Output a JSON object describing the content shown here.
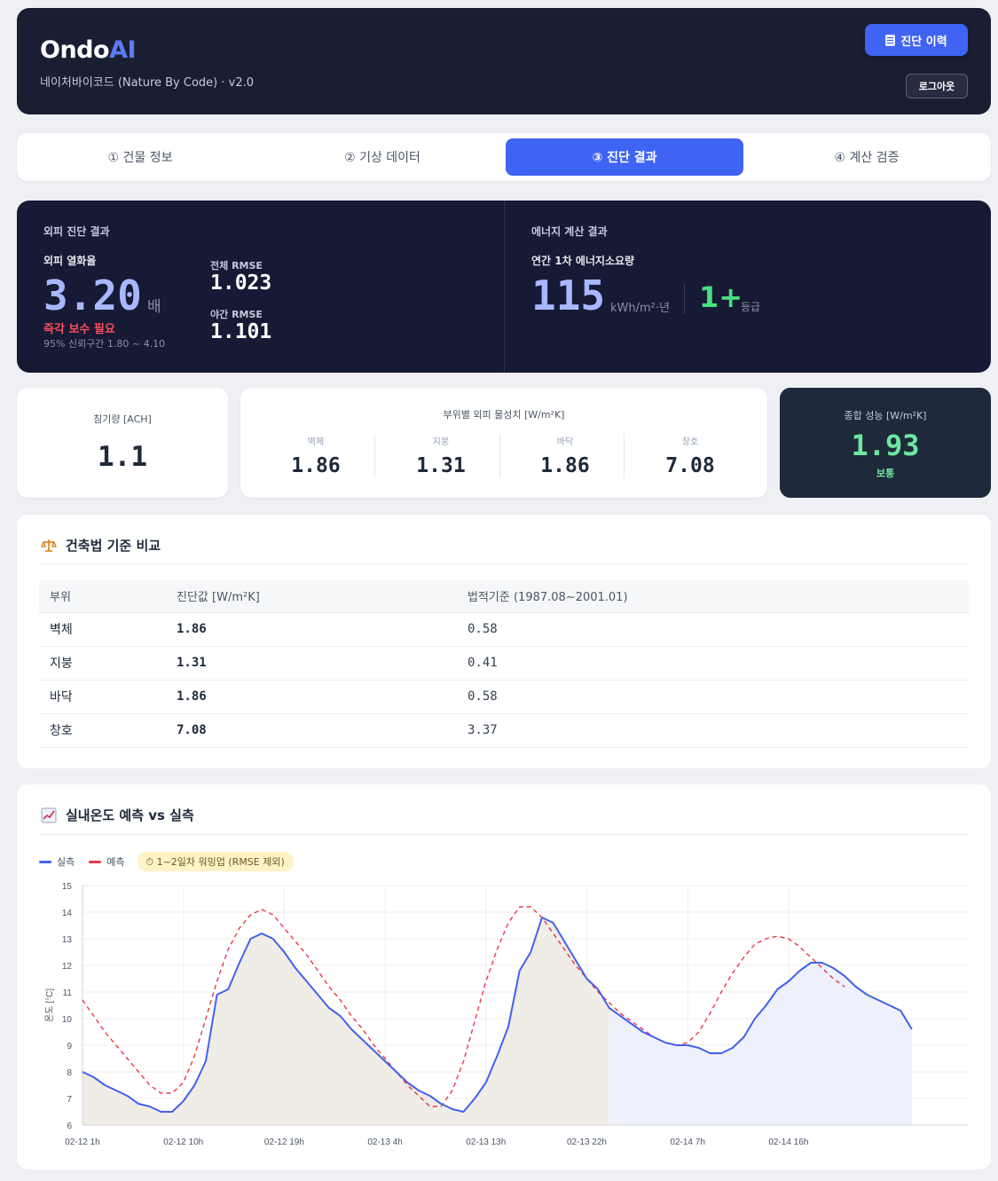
{
  "header": {
    "brand_main": "Ondo",
    "brand_accent": "AI",
    "subtitle": "네이처바이코드 (Nature By Code) · v2.0",
    "history_button": "진단 이력",
    "logout_button": "로그아웃"
  },
  "tabs": [
    {
      "label": "① 건물 정보"
    },
    {
      "label": "② 기상 데이터"
    },
    {
      "label": "③ 진단 결과"
    },
    {
      "label": "④ 계산 검증"
    }
  ],
  "envelope": {
    "section_label": "외피 진단 결과",
    "metric_label": "외피 열화율",
    "value": "3.20",
    "unit": "배",
    "warning": "즉각 보수 필요",
    "ci": "95% 신뢰구간 1.80 ~ 4.10",
    "rmse_total_label": "전체 RMSE",
    "rmse_total": "1.023",
    "rmse_night_label": "야간 RMSE",
    "rmse_night": "1.101"
  },
  "energy": {
    "section_label": "에너지 계산 결과",
    "metric_label": "연간 1차 에너지소요량",
    "value": "115",
    "unit": "kWh/m²·년",
    "grade": "1+",
    "grade_unit": "등급"
  },
  "infiltration": {
    "label": "침기량 [ACH]",
    "value": "1.1"
  },
  "u_values": {
    "title": "부위별 외피 물성치 [W/m²K]",
    "items": [
      {
        "name": "벽체",
        "value": "1.86"
      },
      {
        "name": "지붕",
        "value": "1.31"
      },
      {
        "name": "바닥",
        "value": "1.86"
      },
      {
        "name": "창호",
        "value": "7.08"
      }
    ]
  },
  "overall": {
    "label": "종합 성능 [W/m²K]",
    "value": "1.93",
    "status": "보통"
  },
  "comparison": {
    "title": "건축법 기준 비교",
    "headers": [
      "부위",
      "진단값 [W/m²K]",
      "법적기준 (1987.08~2001.01)"
    ],
    "rows": [
      {
        "part": "벽체",
        "diag": "1.86",
        "legal": "0.58"
      },
      {
        "part": "지붕",
        "diag": "1.31",
        "legal": "0.41"
      },
      {
        "part": "바닥",
        "diag": "1.86",
        "legal": "0.58"
      },
      {
        "part": "창호",
        "diag": "7.08",
        "legal": "3.37"
      }
    ]
  },
  "chart_card": {
    "title": "실내온도 예측 vs 실측",
    "legend_actual": "실측",
    "legend_pred": "예측",
    "warmup_badge": "⏱ 1~2일차 워밍업 (RMSE 제외)"
  },
  "colors": {
    "actual": "#4361ee",
    "pred": "#e63946",
    "warmup_fill": "#f0ece6",
    "eval_fill": "#eef1fb"
  },
  "chart_data": {
    "type": "line",
    "ylabel": "온도 [°C]",
    "ylim": [
      6,
      15
    ],
    "yticks": [
      6,
      7,
      8,
      9,
      10,
      11,
      12,
      13,
      14,
      15
    ],
    "xlim": [
      0,
      79
    ],
    "xticks": [
      {
        "x": 0,
        "label": "02-12 1h"
      },
      {
        "x": 9,
        "label": "02-12 10h"
      },
      {
        "x": 18,
        "label": "02-12 19h"
      },
      {
        "x": 27,
        "label": "02-13 4h"
      },
      {
        "x": 36,
        "label": "02-13 13h"
      },
      {
        "x": 45,
        "label": "02-13 22h"
      },
      {
        "x": 54,
        "label": "02-14 7h"
      },
      {
        "x": 63,
        "label": "02-14 16h"
      }
    ],
    "warmup_end_x": 47,
    "grid": true,
    "series": [
      {
        "name": "실측",
        "style": "solid",
        "points": [
          [
            0,
            8.0
          ],
          [
            1,
            7.8
          ],
          [
            2,
            7.5
          ],
          [
            3,
            7.3
          ],
          [
            4,
            7.1
          ],
          [
            5,
            6.8
          ],
          [
            6,
            6.7
          ],
          [
            7,
            6.5
          ],
          [
            8,
            6.5
          ],
          [
            9,
            6.9
          ],
          [
            10,
            7.5
          ],
          [
            11,
            8.4
          ],
          [
            12,
            10.9
          ],
          [
            13,
            11.1
          ],
          [
            14,
            12.1
          ],
          [
            15,
            13.0
          ],
          [
            16,
            13.2
          ],
          [
            17,
            13.0
          ],
          [
            18,
            12.5
          ],
          [
            19,
            11.9
          ],
          [
            20,
            11.4
          ],
          [
            21,
            10.9
          ],
          [
            22,
            10.4
          ],
          [
            23,
            10.1
          ],
          [
            24,
            9.6
          ],
          [
            25,
            9.2
          ],
          [
            26,
            8.8
          ],
          [
            27,
            8.4
          ],
          [
            28,
            8.0
          ],
          [
            29,
            7.6
          ],
          [
            30,
            7.3
          ],
          [
            31,
            7.1
          ],
          [
            32,
            6.8
          ],
          [
            33,
            6.6
          ],
          [
            34,
            6.5
          ],
          [
            35,
            7.0
          ],
          [
            36,
            7.6
          ],
          [
            37,
            8.6
          ],
          [
            38,
            9.7
          ],
          [
            39,
            11.8
          ],
          [
            40,
            12.5
          ],
          [
            41,
            13.8
          ],
          [
            42,
            13.6
          ],
          [
            43,
            12.9
          ],
          [
            44,
            12.2
          ],
          [
            45,
            11.5
          ],
          [
            46,
            11.1
          ],
          [
            47,
            10.4
          ],
          [
            48,
            10.1
          ],
          [
            49,
            9.8
          ],
          [
            50,
            9.5
          ],
          [
            51,
            9.3
          ],
          [
            52,
            9.1
          ],
          [
            53,
            9.0
          ],
          [
            54,
            9.0
          ],
          [
            55,
            8.9
          ],
          [
            56,
            8.7
          ],
          [
            57,
            8.7
          ],
          [
            58,
            8.9
          ],
          [
            59,
            9.3
          ],
          [
            60,
            10.0
          ],
          [
            61,
            10.5
          ],
          [
            62,
            11.1
          ],
          [
            63,
            11.4
          ],
          [
            64,
            11.8
          ],
          [
            65,
            12.1
          ],
          [
            66,
            12.1
          ],
          [
            67,
            11.9
          ],
          [
            68,
            11.6
          ],
          [
            69,
            11.2
          ],
          [
            70,
            10.9
          ],
          [
            71,
            10.7
          ],
          [
            72,
            10.5
          ],
          [
            73,
            10.3
          ],
          [
            74,
            9.6
          ]
        ]
      },
      {
        "name": "예측",
        "style": "dashed",
        "points": [
          [
            0,
            10.7
          ],
          [
            1,
            10.1
          ],
          [
            2,
            9.5
          ],
          [
            3,
            9.0
          ],
          [
            4,
            8.5
          ],
          [
            5,
            8.0
          ],
          [
            6,
            7.5
          ],
          [
            7,
            7.2
          ],
          [
            8,
            7.2
          ],
          [
            9,
            7.6
          ],
          [
            10,
            8.6
          ],
          [
            11,
            10.0
          ],
          [
            12,
            11.4
          ],
          [
            13,
            12.6
          ],
          [
            14,
            13.4
          ],
          [
            15,
            13.9
          ],
          [
            16,
            14.1
          ],
          [
            17,
            13.9
          ],
          [
            18,
            13.4
          ],
          [
            19,
            12.9
          ],
          [
            20,
            12.4
          ],
          [
            21,
            11.8
          ],
          [
            22,
            11.2
          ],
          [
            23,
            10.7
          ],
          [
            24,
            10.1
          ],
          [
            25,
            9.6
          ],
          [
            26,
            9.0
          ],
          [
            27,
            8.5
          ],
          [
            28,
            8.0
          ],
          [
            29,
            7.5
          ],
          [
            30,
            7.1
          ],
          [
            31,
            6.7
          ],
          [
            32,
            6.7
          ],
          [
            33,
            7.3
          ],
          [
            34,
            8.4
          ],
          [
            35,
            9.9
          ],
          [
            36,
            11.4
          ],
          [
            37,
            12.6
          ],
          [
            38,
            13.6
          ],
          [
            39,
            14.2
          ],
          [
            40,
            14.2
          ],
          [
            41,
            13.8
          ],
          [
            42,
            13.2
          ],
          [
            43,
            12.6
          ],
          [
            44,
            12.0
          ],
          [
            45,
            11.5
          ],
          [
            46,
            11.0
          ],
          [
            47,
            10.6
          ],
          [
            48,
            10.2
          ],
          [
            49,
            9.9
          ],
          [
            50,
            9.6
          ],
          [
            51,
            9.3
          ],
          [
            52,
            9.1
          ],
          [
            53,
            9.0
          ],
          [
            54,
            9.1
          ],
          [
            55,
            9.5
          ],
          [
            56,
            10.2
          ],
          [
            57,
            11.0
          ],
          [
            58,
            11.7
          ],
          [
            59,
            12.3
          ],
          [
            60,
            12.8
          ],
          [
            61,
            13.0
          ],
          [
            62,
            13.1
          ],
          [
            63,
            13.0
          ],
          [
            64,
            12.7
          ],
          [
            65,
            12.3
          ],
          [
            66,
            11.9
          ],
          [
            67,
            11.5
          ],
          [
            68,
            11.2
          ]
        ]
      }
    ]
  }
}
